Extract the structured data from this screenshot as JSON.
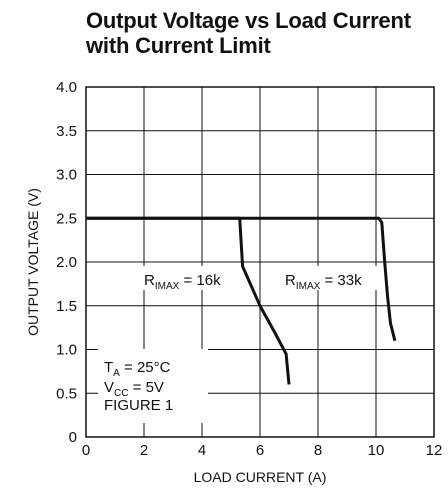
{
  "chart_data": {
    "type": "line",
    "title_lines": [
      "Output Voltage vs Load Current",
      "with Current Limit"
    ],
    "xlabel": "LOAD CURRENT (A)",
    "ylabel": "OUTPUT VOLTAGE (V)",
    "xlim": [
      0,
      12
    ],
    "ylim": [
      0,
      4.0
    ],
    "xticks": [
      0,
      2,
      4,
      6,
      8,
      10,
      12
    ],
    "yticks": [
      "0",
      "0.5",
      "1.0",
      "1.5",
      "2.0",
      "2.5",
      "3.0",
      "3.5",
      "4.0"
    ],
    "grid": true,
    "series": [
      {
        "name": "RIMAX = 16k",
        "x": [
          0,
          5.3,
          5.4,
          5.6,
          6.0,
          6.5,
          6.9,
          7.0
        ],
        "y": [
          2.5,
          2.5,
          1.95,
          1.8,
          1.5,
          1.2,
          0.95,
          0.6
        ]
      },
      {
        "name": "RIMAX = 33k",
        "x": [
          0,
          10.1,
          10.2,
          10.3,
          10.4,
          10.5,
          10.65
        ],
        "y": [
          2.5,
          2.5,
          2.45,
          2.0,
          1.6,
          1.3,
          1.1
        ]
      }
    ],
    "labels": [
      {
        "main": "R",
        "sub": "IMAX",
        "rest": " = 16k"
      },
      {
        "main": "R",
        "sub": "IMAX",
        "rest": " = 33k"
      }
    ],
    "conditions": [
      {
        "main": "T",
        "sub": "A",
        "rest": " = 25°C"
      },
      {
        "main": "V",
        "sub": "CC",
        "rest": " = 5V"
      },
      {
        "main": "FIGURE 1",
        "sub": "",
        "rest": ""
      }
    ]
  }
}
